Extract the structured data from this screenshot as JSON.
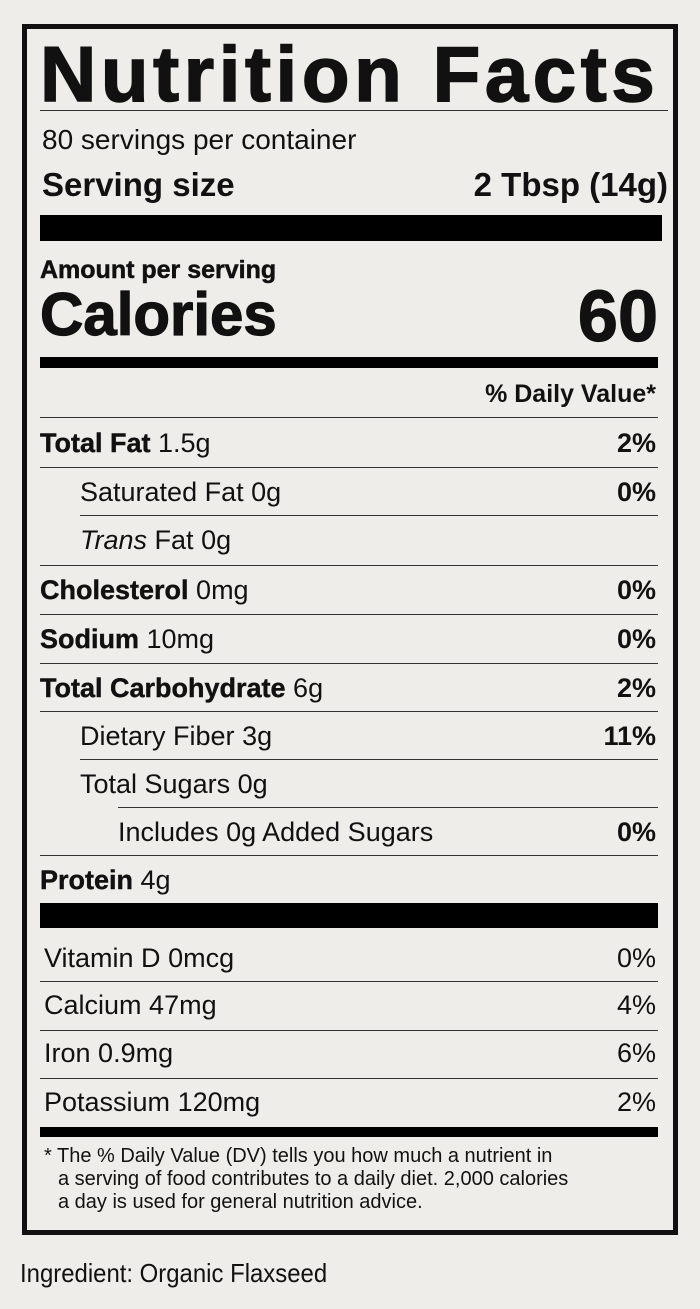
{
  "title": "Nutrition Facts",
  "servings_per_container": "80 servings per container",
  "serving_size_label": "Serving size",
  "serving_size_value": "2 Tbsp (14g)",
  "amount_per_serving": "Amount per serving",
  "calories_label": "Calories",
  "calories_value": "60",
  "daily_value_header": "% Daily Value*",
  "nutrients": [
    {
      "name": "Total Fat",
      "amount": "1.5g",
      "dv": "2%"
    },
    {
      "name": "Saturated Fat",
      "amount": "0g",
      "dv": "0%"
    },
    {
      "name_italic": "Trans",
      "name": "Fat",
      "amount": "0g",
      "dv": ""
    },
    {
      "name": "Cholesterol",
      "amount": "0mg",
      "dv": "0%"
    },
    {
      "name": "Sodium",
      "amount": "10mg",
      "dv": "0%"
    },
    {
      "name": "Total Carbohydrate",
      "amount": "6g",
      "dv": "2%"
    },
    {
      "name": "Dietary Fiber",
      "amount": "3g",
      "dv": "11%"
    },
    {
      "name": "Total Sugars",
      "amount": "0g",
      "dv": ""
    },
    {
      "name": "Includes 0g Added Sugars",
      "amount": "",
      "dv": "0%"
    },
    {
      "name": "Protein",
      "amount": "4g",
      "dv": ""
    }
  ],
  "vitamins": [
    {
      "name": "Vitamin D",
      "amount": "0mcg",
      "dv": "0%"
    },
    {
      "name": "Calcium",
      "amount": "47mg",
      "dv": "4%"
    },
    {
      "name": "Iron",
      "amount": "0.9mg",
      "dv": "6%"
    },
    {
      "name": "Potassium",
      "amount": "120mg",
      "dv": "2%"
    }
  ],
  "footnote": {
    "line1": "* The % Daily Value (DV) tells you how much a nutrient in",
    "line2": "a serving of food contributes to a daily diet. 2,000 calories",
    "line3": "a day is used for general nutrition advice."
  },
  "ingredients": "Ingredient: Organic Flaxseed",
  "colors": {
    "background": "#eeede9",
    "ink": "#111111"
  }
}
